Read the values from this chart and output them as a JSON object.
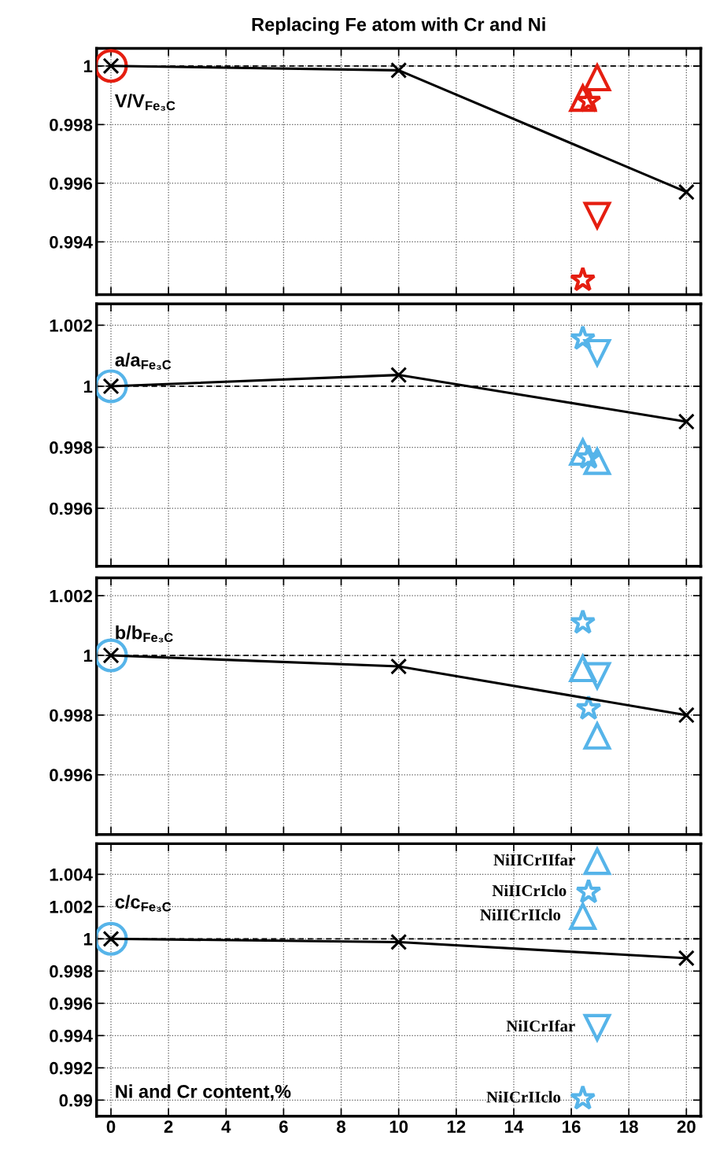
{
  "chart_data": [
    {
      "type": "line",
      "title": "Replacing Fe atom with Cr and Ni",
      "xlim": [
        -0.5,
        20.5
      ],
      "xticks": [
        0,
        2,
        4,
        6,
        8,
        10,
        12,
        14,
        16,
        18,
        20
      ],
      "ylim": [
        0.9922,
        1.0006
      ],
      "yticks": [
        0.994,
        0.996,
        0.998,
        1
      ],
      "grid": true,
      "tick_labels": "y",
      "ref_lines": [
        {
          "axis": "y",
          "value": 1,
          "color": "#000000",
          "line_style": "dashed"
        }
      ],
      "annotations": [
        "V/V$_{Fe₃C}$"
      ],
      "series": [
        {
          "color": "#000000",
          "marker": "cross",
          "line_style": "solid",
          "x": [
            0,
            10,
            20
          ],
          "values": [
            1,
            0.99985,
            0.9957
          ]
        },
        {
          "type": "scatter",
          "color": "#e51e10",
          "marker": "circle",
          "x": [
            0
          ],
          "values": [
            1
          ]
        },
        {
          "type": "scatter",
          "color": "#e51e10",
          "marker": "triangle",
          "x": [
            16.9
          ],
          "values": [
            0.9996
          ]
        },
        {
          "type": "scatter",
          "color": "#e51e10",
          "marker": "star",
          "x": [
            16.6
          ],
          "values": [
            0.9988
          ]
        },
        {
          "type": "scatter",
          "color": "#e51e10",
          "marker": "triangle",
          "x": [
            16.4
          ],
          "values": [
            0.9989
          ]
        },
        {
          "type": "scatter",
          "color": "#e51e10",
          "marker": "triangle_down",
          "x": [
            16.9
          ],
          "values": [
            0.9949
          ]
        },
        {
          "type": "scatter",
          "color": "#e51e10",
          "marker": "star",
          "x": [
            16.4
          ],
          "values": [
            0.9927
          ]
        }
      ]
    },
    {
      "type": "line",
      "xlim": [
        -0.5,
        20.5
      ],
      "xticks": [
        0,
        2,
        4,
        6,
        8,
        10,
        12,
        14,
        16,
        18,
        20
      ],
      "ylim": [
        0.9941,
        1.0027
      ],
      "yticks": [
        0.996,
        0.998,
        1,
        1.002
      ],
      "grid": true,
      "tick_labels": "y",
      "ref_lines": [
        {
          "axis": "y",
          "value": 1,
          "color": "#000000",
          "line_style": "dashed"
        }
      ],
      "annotations": [
        "a/a$_{Fe₃C}$"
      ],
      "series": [
        {
          "color": "#000000",
          "marker": "cross",
          "line_style": "solid",
          "x": [
            0,
            10,
            20
          ],
          "values": [
            1,
            1.00037,
            0.99884
          ]
        },
        {
          "type": "scatter",
          "color": "#56b4e9",
          "marker": "circle",
          "x": [
            0
          ],
          "values": [
            1
          ]
        },
        {
          "type": "scatter",
          "color": "#56b4e9",
          "marker": "triangle",
          "x": [
            16.9
          ],
          "values": [
            0.99754
          ]
        },
        {
          "type": "scatter",
          "color": "#56b4e9",
          "marker": "star",
          "x": [
            16.6
          ],
          "values": [
            0.99766
          ]
        },
        {
          "type": "scatter",
          "color": "#56b4e9",
          "marker": "triangle",
          "x": [
            16.4
          ],
          "values": [
            0.99784
          ]
        },
        {
          "type": "scatter",
          "color": "#56b4e9",
          "marker": "triangle_down",
          "x": [
            16.9
          ],
          "values": [
            1.0011
          ]
        },
        {
          "type": "scatter",
          "color": "#56b4e9",
          "marker": "star",
          "x": [
            16.4
          ],
          "values": [
            1.00156
          ]
        }
      ]
    },
    {
      "type": "line",
      "xlim": [
        -0.5,
        20.5
      ],
      "xticks": [
        0,
        2,
        4,
        6,
        8,
        10,
        12,
        14,
        16,
        18,
        20
      ],
      "ylim": [
        0.994,
        1.0026
      ],
      "yticks": [
        0.996,
        0.998,
        1,
        1.002
      ],
      "grid": true,
      "tick_labels": "y",
      "ref_lines": [
        {
          "axis": "y",
          "value": 1,
          "color": "#000000",
          "line_style": "dashed"
        }
      ],
      "annotations": [
        "b/b$_{Fe₃C}$"
      ],
      "series": [
        {
          "color": "#000000",
          "marker": "cross",
          "line_style": "solid",
          "x": [
            0,
            10,
            20
          ],
          "values": [
            1,
            0.99963,
            0.998
          ]
        },
        {
          "type": "scatter",
          "color": "#56b4e9",
          "marker": "circle",
          "x": [
            0
          ],
          "values": [
            1
          ]
        },
        {
          "type": "scatter",
          "color": "#56b4e9",
          "marker": "triangle",
          "x": [
            16.9
          ],
          "values": [
            0.9973
          ]
        },
        {
          "type": "scatter",
          "color": "#56b4e9",
          "marker": "star",
          "x": [
            16.6
          ],
          "values": [
            0.99822
          ]
        },
        {
          "type": "scatter",
          "color": "#56b4e9",
          "marker": "triangle",
          "x": [
            16.4
          ],
          "values": [
            0.99956
          ]
        },
        {
          "type": "scatter",
          "color": "#56b4e9",
          "marker": "triangle_down",
          "x": [
            16.9
          ],
          "values": [
            0.99932
          ]
        },
        {
          "type": "scatter",
          "color": "#56b4e9",
          "marker": "star",
          "x": [
            16.4
          ],
          "values": [
            1.0011
          ]
        }
      ]
    },
    {
      "type": "line",
      "xlabel": "Ni and Cr content,%",
      "xlim": [
        -0.5,
        20.5
      ],
      "xticks": [
        0,
        2,
        4,
        6,
        8,
        10,
        12,
        14,
        16,
        18,
        20
      ],
      "ylim": [
        0.989,
        1.0059
      ],
      "yticks": [
        0.99,
        0.992,
        0.994,
        0.996,
        0.998,
        1,
        1.002,
        1.004
      ],
      "grid": true,
      "ref_lines": [
        {
          "axis": "y",
          "value": 1,
          "color": "#000000",
          "line_style": "dashed"
        }
      ],
      "annotations": [
        "c/c$_{Fe₃C}$"
      ],
      "series": [
        {
          "color": "#000000",
          "marker": "cross",
          "line_style": "solid",
          "x": [
            0,
            10,
            20
          ],
          "values": [
            1,
            0.9998,
            0.9988
          ]
        },
        {
          "type": "scatter",
          "color": "#56b4e9",
          "marker": "circle",
          "x": [
            0
          ],
          "values": [
            1
          ]
        },
        {
          "type": "scatter",
          "name": "NiIICrIIfar",
          "color": "#56b4e9",
          "marker": "triangle",
          "x": [
            16.9
          ],
          "values": [
            1.0048
          ]
        },
        {
          "type": "scatter",
          "name": "NiIICrIclo",
          "color": "#56b4e9",
          "marker": "star",
          "x": [
            16.6
          ],
          "values": [
            1.0029
          ]
        },
        {
          "type": "scatter",
          "name": "NiIICrIIclo",
          "color": "#56b4e9",
          "marker": "triangle",
          "x": [
            16.4
          ],
          "values": [
            1.0014
          ]
        },
        {
          "type": "scatter",
          "name": "NiICrIfar",
          "color": "#56b4e9",
          "marker": "triangle_down",
          "x": [
            16.9
          ],
          "values": [
            0.9945
          ]
        },
        {
          "type": "scatter",
          "name": "NiICrIIclo",
          "color": "#56b4e9",
          "marker": "star",
          "x": [
            16.4
          ],
          "values": [
            0.9901
          ]
        }
      ]
    }
  ]
}
